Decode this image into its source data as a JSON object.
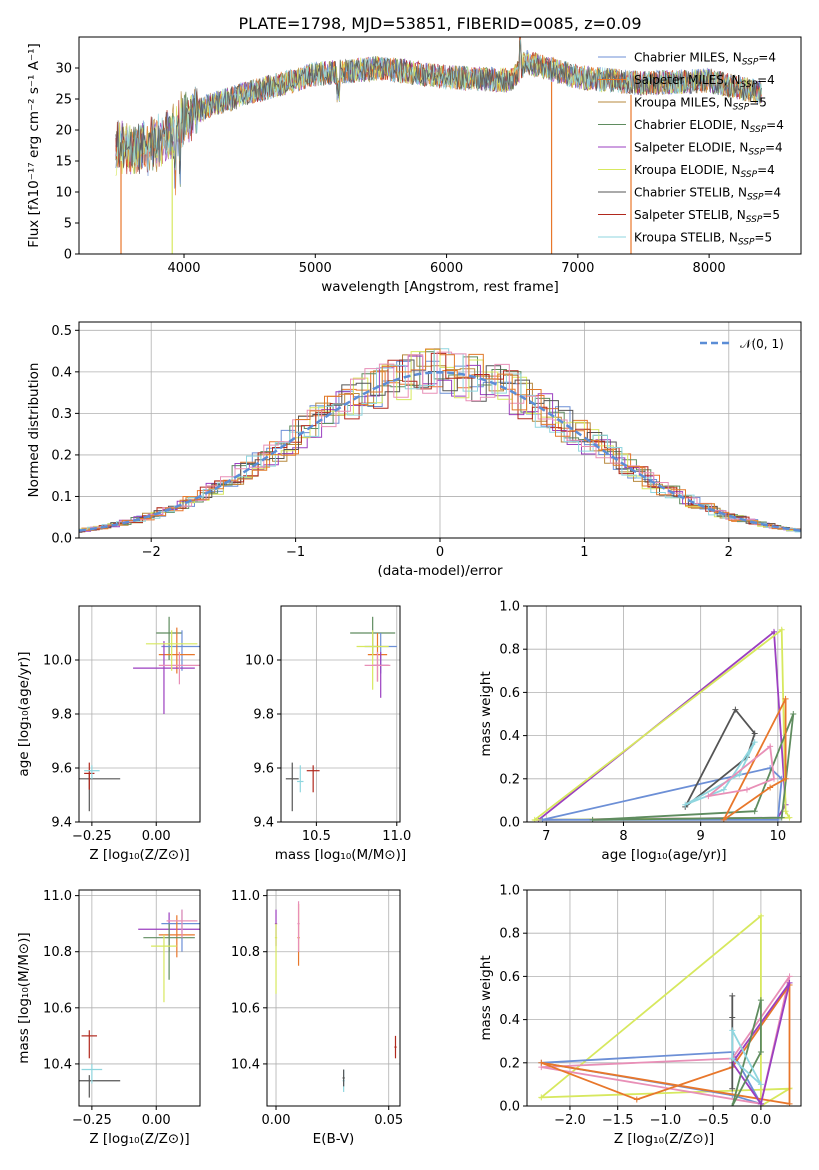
{
  "title": "PLATE=1798, MJD=53851, FIBERID=0085, z=0.09",
  "colors": {
    "series": [
      "#6c8fd6",
      "#e8772b",
      "#b7893e",
      "#5f8c5f",
      "#9b3fc0",
      "#d7e85e",
      "#555555",
      "#b1281d",
      "#8fd6df"
    ],
    "extra": [
      "#e88fb7",
      "#e07a2a"
    ],
    "gauss": "#5b8dd6",
    "grid": "#b0b0b0"
  },
  "chart_data": [
    {
      "id": "spectrum",
      "type": "line",
      "xlabel": "wavelength [Angstrom, rest frame]",
      "ylabel": "Flux [fλ10⁻¹⁷ erg cm⁻² s⁻¹ A⁻¹]",
      "xlim": [
        3200,
        8700
      ],
      "ylim": [
        0,
        35
      ],
      "xticks": [
        "4000",
        "5000",
        "6000",
        "7000",
        "8000"
      ],
      "yticks": [
        "0",
        "5",
        "10",
        "15",
        "20",
        "25",
        "30"
      ],
      "legend_position": "right",
      "series": [
        {
          "name": "Chabrier MILES, N_SSP=4"
        },
        {
          "name": "Salpeter MILES, N_SSP=4"
        },
        {
          "name": "Kroupa MILES, N_SSP=5"
        },
        {
          "name": "Chabrier ELODIE, N_SSP=4"
        },
        {
          "name": "Salpeter ELODIE, N_SSP=4"
        },
        {
          "name": "Kroupa ELODIE, N_SSP=4"
        },
        {
          "name": "Chabrier STELIB, N_SSP=4"
        },
        {
          "name": "Salpeter STELIB, N_SSP=5"
        },
        {
          "name": "Kroupa STELIB, N_SSP=5"
        }
      ],
      "continuum": {
        "x": [
          3500,
          3700,
          3900,
          4000,
          4200,
          4500,
          5000,
          5500,
          6000,
          6500,
          6600,
          7000,
          7500,
          8000,
          8400
        ],
        "y": [
          17,
          17,
          19,
          22,
          24,
          26,
          29,
          30,
          28.5,
          28,
          31,
          28.5,
          27.5,
          28,
          26
        ]
      }
    },
    {
      "id": "residuals",
      "type": "step-histogram",
      "xlabel": "(data-model)/error",
      "ylabel": "Normed distribution",
      "xlim": [
        -2.5,
        2.5
      ],
      "ylim": [
        0,
        0.52
      ],
      "xticks": [
        "−2",
        "−1",
        "0",
        "1",
        "2"
      ],
      "yticks": [
        "0.0",
        "0.1",
        "0.2",
        "0.3",
        "0.4",
        "0.5"
      ],
      "legend": "𝒩(0, 1)",
      "legend_position": "top-right",
      "bin_width": 0.1,
      "gauss_mean": 0,
      "gauss_sigma": 1
    },
    {
      "id": "age-vs-Z",
      "type": "errorbar",
      "xlabel": "Z [log₁₀(Z/Z⊙)]",
      "ylabel": "age  [log₁₀(age/yr)]",
      "xlim": [
        -0.3,
        0.17
      ],
      "ylim": [
        9.4,
        10.2
      ],
      "xticks": [
        "−0.25",
        "0.00"
      ],
      "yticks": [
        "9.4",
        "9.6",
        "9.8",
        "10.0"
      ]
    },
    {
      "id": "age-vs-mass",
      "type": "errorbar",
      "xlabel": "mass [log₁₀(M/M⊙)]",
      "xlim": [
        10.28,
        11.02
      ],
      "ylim": [
        9.4,
        10.2
      ],
      "xticks": [
        "10.5",
        "11.0"
      ],
      "yticks": [
        "9.4",
        "9.6",
        "9.8",
        "10.0"
      ]
    },
    {
      "id": "massweight-vs-age",
      "type": "line",
      "xlabel": "age  [log₁₀(age/yr)]",
      "ylabel": "mass weight",
      "xlim": [
        6.75,
        10.3
      ],
      "ylim": [
        0,
        1.0
      ],
      "xticks": [
        "7",
        "8",
        "9",
        "10"
      ],
      "yticks": [
        "0.0",
        "0.2",
        "0.4",
        "0.6",
        "0.8",
        "1.0"
      ]
    },
    {
      "id": "mass-vs-Z",
      "type": "errorbar",
      "xlabel": "Z [log₁₀(Z/Z⊙)]",
      "ylabel": "mass [log₁₀(M/M⊙)]",
      "xlim": [
        -0.3,
        0.17
      ],
      "ylim": [
        10.25,
        11.02
      ],
      "xticks": [
        "−0.25",
        "0.00"
      ],
      "yticks": [
        "10.4",
        "10.6",
        "10.8",
        "11.0"
      ]
    },
    {
      "id": "mass-vs-EBV",
      "type": "errorbar",
      "xlabel": "E(B-V)",
      "xlim": [
        -0.004,
        0.055
      ],
      "ylim": [
        10.25,
        11.02
      ],
      "xticks": [
        "0.00",
        "0.05"
      ],
      "yticks": [
        "10.4",
        "10.6",
        "10.8",
        "11.0"
      ]
    },
    {
      "id": "massweight-vs-Z",
      "type": "line",
      "xlabel": "Z [log₁₀(Z/Z⊙)]",
      "ylabel": "mass weight",
      "xlim": [
        -2.45,
        0.42
      ],
      "ylim": [
        0,
        1.0
      ],
      "xticks": [
        "−2.0",
        "−1.5",
        "−1.0",
        "−0.5",
        "0.0"
      ],
      "yticks": [
        "0.0",
        "0.2",
        "0.4",
        "0.6",
        "0.8",
        "1.0"
      ]
    }
  ]
}
